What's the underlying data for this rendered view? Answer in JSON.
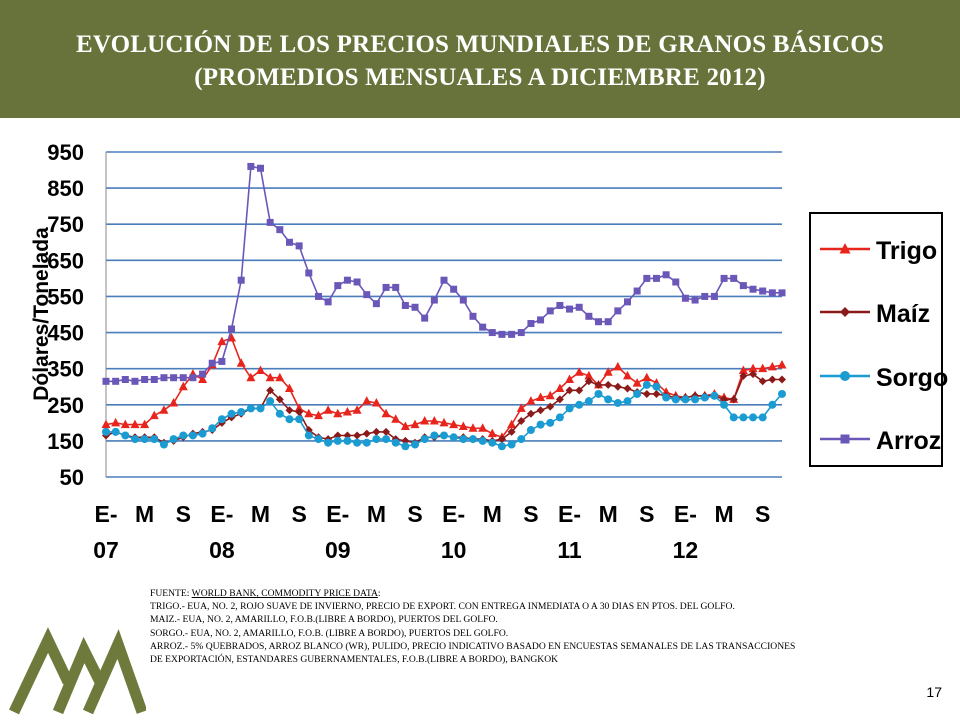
{
  "title": {
    "line1": "EVOLUCIÓN DE LOS PRECIOS MUNDIALES DE GRANOS BÁSICOS",
    "line2": "(PROMEDIOS MENSUALES A DICIEMBRE 2012)"
  },
  "source": {
    "prefix": "FUENTE: ",
    "link": "WORLD BANK, COMMODITY PRICE DATA",
    "suffix": ":",
    "lines": [
      "TRIGO.- EUA, NO. 2, ROJO SUAVE DE INVIERNO, PRECIO DE EXPORT. CON ENTREGA INMEDIATA O A 30 DIAS EN PTOS. DEL GOLFO.",
      "MAIZ.- EUA, NO. 2, AMARILLO, F.O.B.(LIBRE A BORDO), PUERTOS DEL GOLFO.",
      "SORGO.- EUA, NO. 2, AMARILLO, F.O.B. (LIBRE A BORDO), PUERTOS DEL GOLFO.",
      "ARROZ.- 5% QUEBRADOS, ARROZ BLANCO (WR), PULIDO, PRECIO INDICATIVO BASADO EN ENCUESTAS SEMANALES DE LAS TRANSACCIONES",
      "DE EXPORTACIÓN, ESTANDARES GUBERNAMENTALES, F.O.B.(LIBRE A BORDO), BANGKOK"
    ]
  },
  "page_number": "17",
  "colors": {
    "header_bg": "#67733a",
    "gridline": "#4a7ebb",
    "trigo": "#e8251d",
    "maiz": "#8b1a1a",
    "sorgo": "#1a9bd1",
    "arroz": "#6b57b8",
    "logo": "#6d7a3c"
  },
  "chart_data": {
    "type": "line",
    "title": "",
    "xlabel": "",
    "ylabel": "Dólares/Tonelada",
    "ylim": [
      50,
      950
    ],
    "yticks": [
      950,
      850,
      750,
      650,
      550,
      450,
      350,
      250,
      150,
      50
    ],
    "grid": true,
    "legend_position": "right",
    "xtick_labels": [
      {
        "month": 0,
        "line1": "E-",
        "line2": "07"
      },
      {
        "month": 4,
        "line1": "M",
        "line2": ""
      },
      {
        "month": 8,
        "line1": "S",
        "line2": ""
      },
      {
        "month": 12,
        "line1": "E-",
        "line2": "08"
      },
      {
        "month": 16,
        "line1": "M",
        "line2": ""
      },
      {
        "month": 20,
        "line1": "S",
        "line2": ""
      },
      {
        "month": 24,
        "line1": "E-",
        "line2": "09"
      },
      {
        "month": 28,
        "line1": "M",
        "line2": ""
      },
      {
        "month": 32,
        "line1": "S",
        "line2": ""
      },
      {
        "month": 36,
        "line1": "E-",
        "line2": "10"
      },
      {
        "month": 40,
        "line1": "M",
        "line2": ""
      },
      {
        "month": 44,
        "line1": "S",
        "line2": ""
      },
      {
        "month": 48,
        "line1": "E-",
        "line2": "11"
      },
      {
        "month": 52,
        "line1": "M",
        "line2": ""
      },
      {
        "month": 56,
        "line1": "S",
        "line2": ""
      },
      {
        "month": 60,
        "line1": "E-",
        "line2": "12"
      },
      {
        "month": 64,
        "line1": "M",
        "line2": ""
      },
      {
        "month": 68,
        "line1": "S",
        "line2": ""
      }
    ],
    "series": [
      {
        "name": "Trigo",
        "marker": "triangle",
        "color": "#e8251d",
        "values": [
          195,
          200,
          195,
          195,
          195,
          220,
          235,
          255,
          300,
          335,
          320,
          360,
          425,
          435,
          365,
          325,
          345,
          325,
          325,
          295,
          240,
          225,
          220,
          235,
          225,
          230,
          235,
          260,
          255,
          225,
          210,
          190,
          195,
          205,
          205,
          200,
          195,
          190,
          185,
          185,
          170,
          160,
          195,
          240,
          260,
          270,
          275,
          295,
          320,
          340,
          330,
          305,
          340,
          355,
          330,
          310,
          325,
          310,
          285,
          275,
          270,
          275,
          275,
          280,
          270,
          265,
          345,
          350,
          350,
          355,
          360
        ]
      },
      {
        "name": "Maíz",
        "marker": "diamond",
        "color": "#8b1a1a",
        "values": [
          165,
          175,
          165,
          160,
          160,
          160,
          145,
          150,
          160,
          170,
          175,
          180,
          200,
          215,
          225,
          240,
          240,
          290,
          265,
          235,
          230,
          180,
          160,
          155,
          165,
          165,
          165,
          170,
          175,
          175,
          155,
          150,
          145,
          160,
          160,
          165,
          160,
          160,
          155,
          155,
          150,
          155,
          175,
          205,
          225,
          235,
          245,
          265,
          290,
          290,
          315,
          305,
          305,
          300,
          295,
          285,
          280,
          280,
          275,
          270,
          270,
          275,
          275,
          275,
          265,
          265,
          330,
          335,
          315,
          320,
          320
        ]
      },
      {
        "name": "Sorgo",
        "marker": "circle",
        "color": "#1a9bd1",
        "values": [
          175,
          175,
          165,
          155,
          155,
          155,
          140,
          155,
          165,
          165,
          170,
          185,
          210,
          225,
          230,
          240,
          240,
          260,
          225,
          210,
          210,
          165,
          155,
          145,
          150,
          150,
          145,
          145,
          155,
          155,
          145,
          135,
          140,
          155,
          165,
          165,
          160,
          155,
          155,
          150,
          145,
          135,
          140,
          155,
          180,
          195,
          200,
          215,
          240,
          250,
          260,
          280,
          265,
          255,
          260,
          280,
          305,
          300,
          270,
          265,
          265,
          265,
          270,
          275,
          250,
          215,
          215,
          215,
          215,
          250,
          280
        ]
      },
      {
        "name": "Arroz",
        "marker": "square",
        "color": "#6b57b8",
        "values": [
          315,
          315,
          320,
          315,
          320,
          320,
          325,
          325,
          325,
          325,
          335,
          365,
          370,
          460,
          595,
          910,
          905,
          755,
          735,
          700,
          690,
          615,
          550,
          535,
          580,
          595,
          590,
          555,
          530,
          575,
          575,
          525,
          520,
          490,
          540,
          595,
          570,
          540,
          495,
          465,
          450,
          445,
          445,
          450,
          475,
          485,
          510,
          525,
          515,
          520,
          495,
          480,
          480,
          510,
          535,
          565,
          600,
          600,
          610,
          590,
          545,
          540,
          550,
          550,
          600,
          600,
          580,
          570,
          565,
          560,
          560
        ]
      }
    ]
  }
}
